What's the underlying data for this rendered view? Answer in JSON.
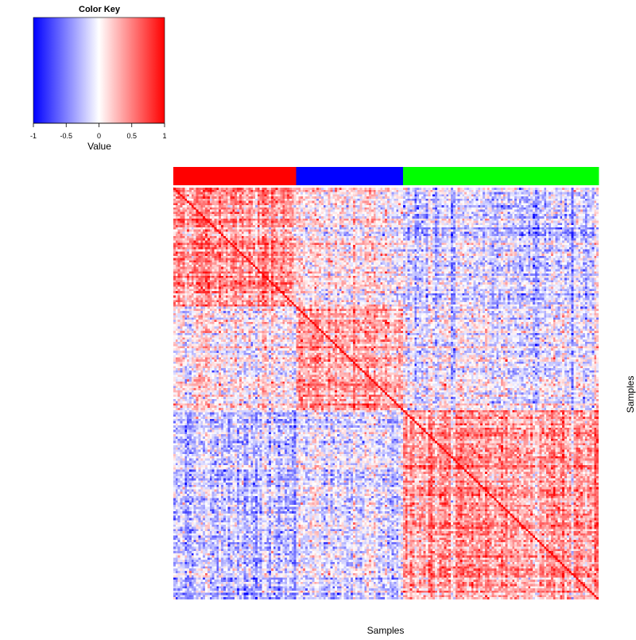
{
  "chart_data": {
    "type": "heatmap",
    "description_kind": "sample-by-sample correlation heatmap with group color bar",
    "xlabel": "Samples",
    "ylabel": "Samples",
    "value_range": [
      -1,
      1
    ],
    "color_key": {
      "title": "Color Key",
      "label": "Value",
      "ticks": [
        -1,
        -0.5,
        0,
        0.5,
        1
      ],
      "tick_labels": [
        "-1",
        "-0.5",
        "0",
        "0.5",
        "1"
      ],
      "low_color": "#0000ff",
      "mid_color": "#ffffff",
      "high_color": "#ff0000"
    },
    "groups": [
      {
        "color": "#ff0000",
        "n_samples": 54
      },
      {
        "color": "#0000ff",
        "n_samples": 47
      },
      {
        "color": "#00ff00",
        "n_samples": 86
      }
    ],
    "block_mean_correlation": [
      [
        0.45,
        0.05,
        -0.18
      ],
      [
        0.05,
        0.3,
        -0.1
      ],
      [
        -0.18,
        -0.1,
        0.4
      ]
    ],
    "diagonal_value": 1
  }
}
